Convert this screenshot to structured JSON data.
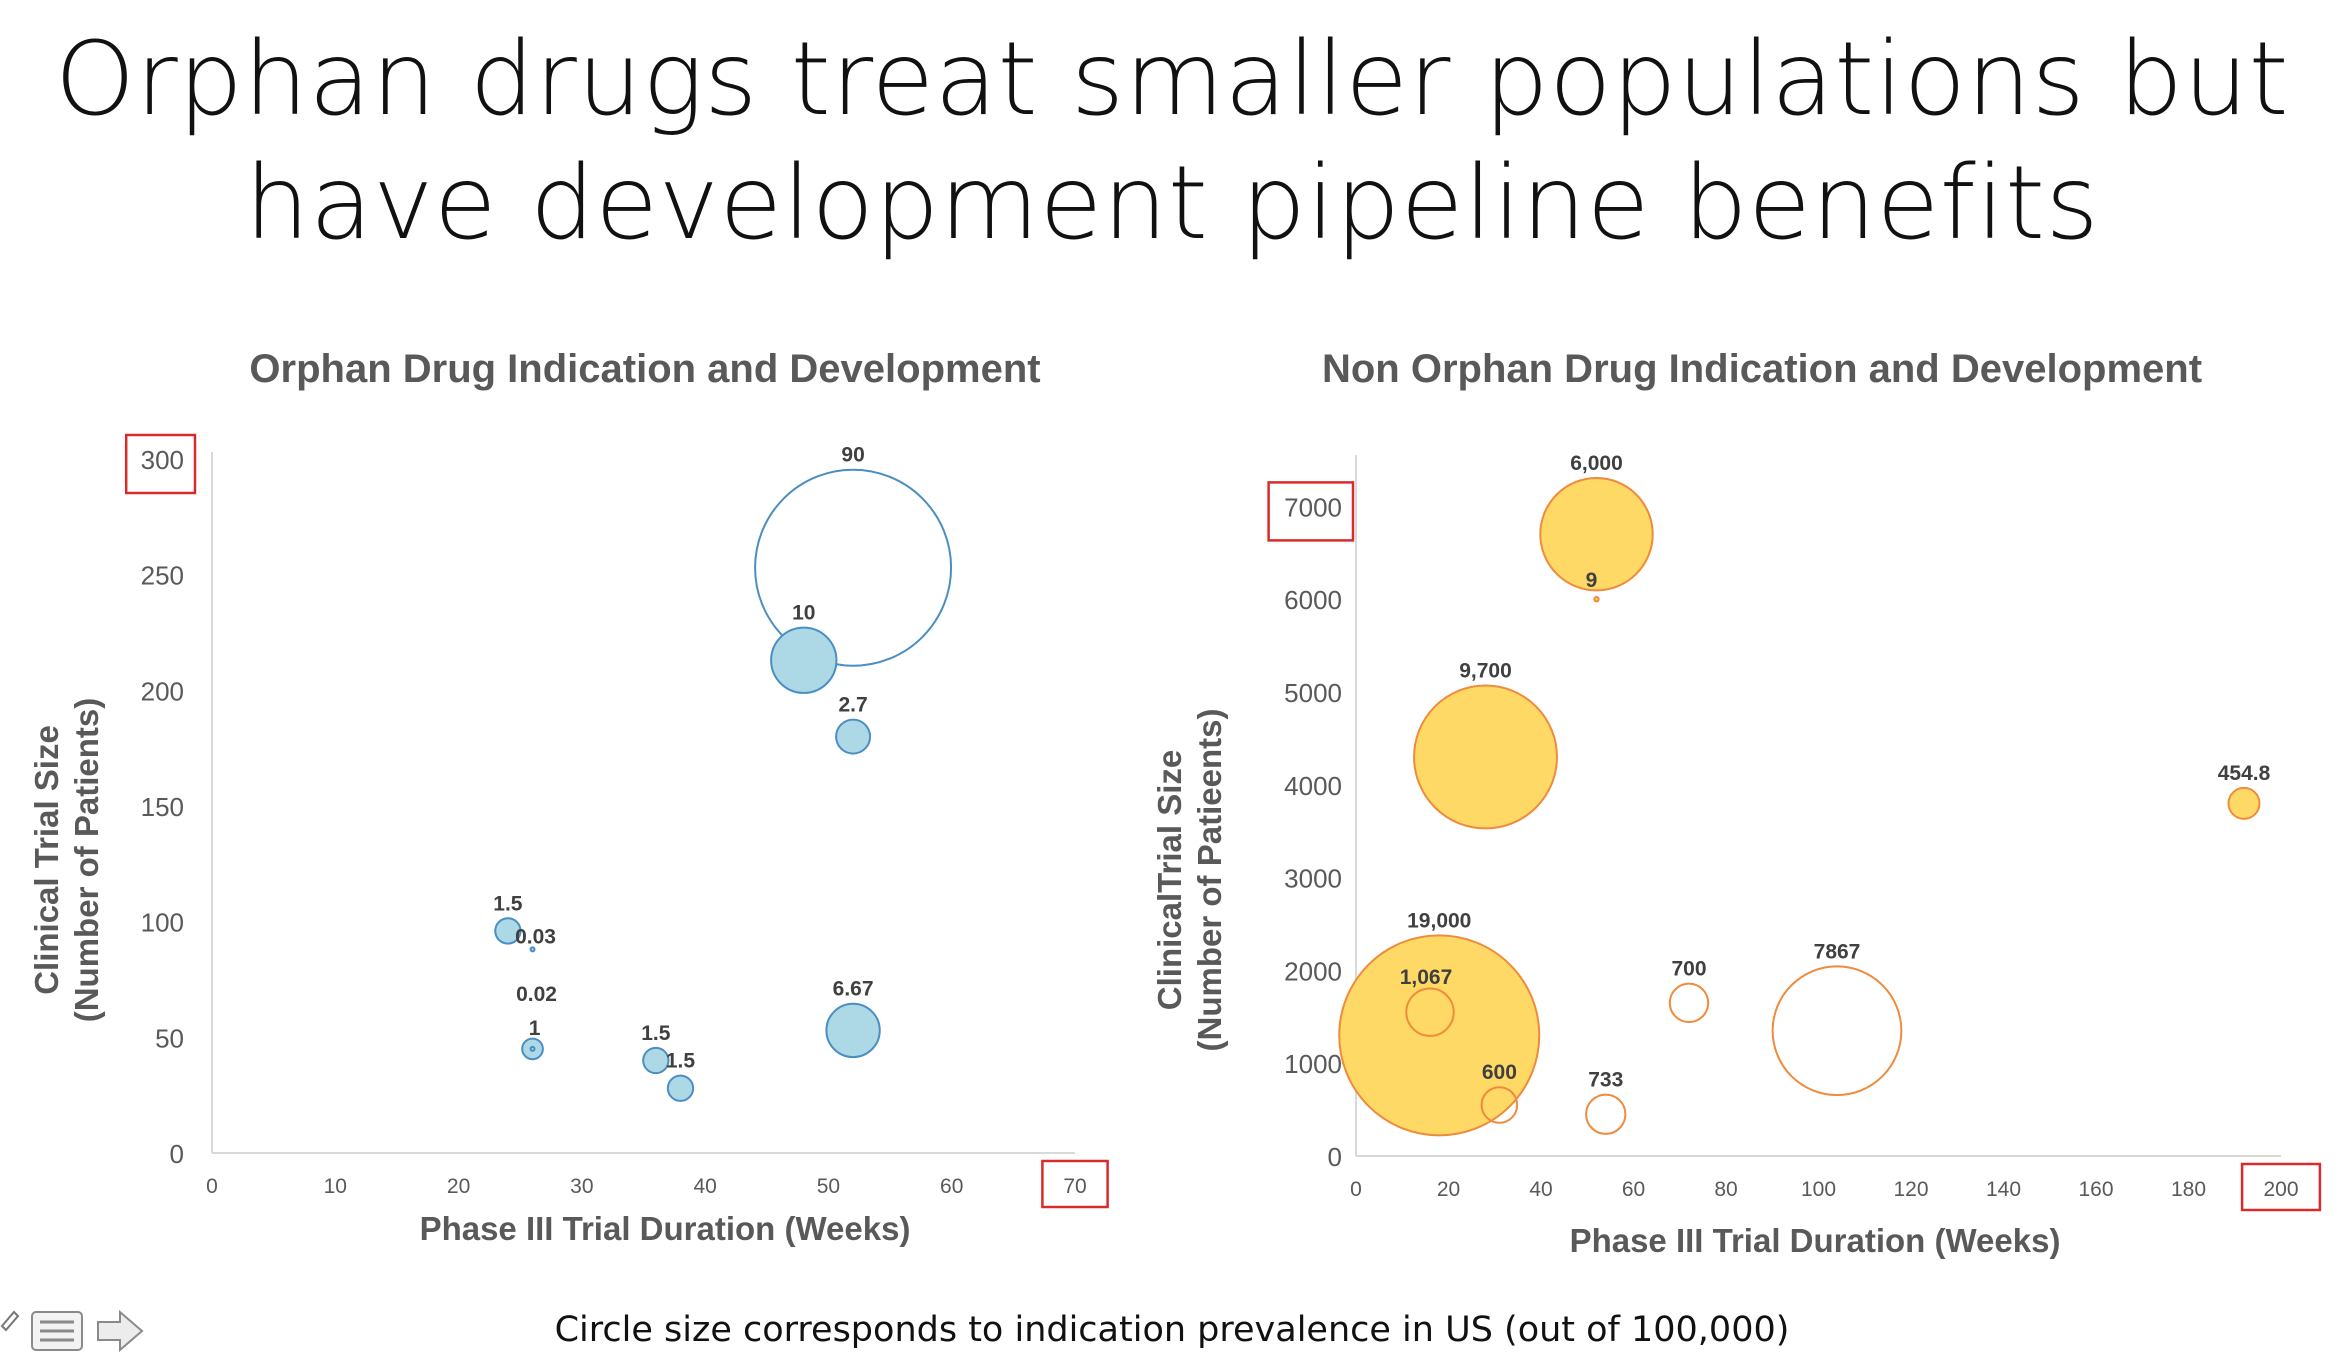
{
  "slide": {
    "title_line1": "Orphan drugs treat smaller populations but",
    "title_line2": "have development pipeline benefits",
    "footnote": "Circle size corresponds to indication prevalence in US (out of 100,000)"
  },
  "toolbar": {
    "icons": [
      "pen-icon",
      "menu-icon",
      "next-arrow-icon"
    ]
  },
  "colors": {
    "orphan_fill": "#add8e6",
    "orphan_stroke": "#4a8ec2",
    "nonorphan_fill": "#ffd966",
    "nonorphan_stroke": "#f08a3c",
    "highlight_box": "#d92b2b",
    "text_gray": "#595959",
    "axis_gray": "#d9d9d9"
  },
  "chart_data": [
    {
      "type": "bubble",
      "title": "Orphan Drug Indication and Development",
      "xlabel": "Phase III Trial Duration (Weeks)",
      "ylabel_line1": "Clinical Trial Size",
      "ylabel_line2": "(Number of Patients)",
      "xlim": [
        0,
        70
      ],
      "ylim": [
        0,
        300
      ],
      "x_ticks": [
        "0",
        "10",
        "20",
        "30",
        "40",
        "50",
        "60",
        "70"
      ],
      "y_ticks": [
        "0",
        "50",
        "100",
        "150",
        "200",
        "250",
        "300"
      ],
      "highlighted_ticks": [
        "300",
        "70"
      ],
      "size_legend": "prevalence per 100,000",
      "points": [
        {
          "x": 52,
          "y": 253,
          "size": 90,
          "label": "90",
          "style": "outline"
        },
        {
          "x": 48,
          "y": 213,
          "size": 10,
          "label": "10",
          "style": "filled"
        },
        {
          "x": 52,
          "y": 180,
          "size": 2.7,
          "label": "2.7",
          "style": "filled"
        },
        {
          "x": 24,
          "y": 96,
          "size": 1.5,
          "label": "1.5",
          "style": "filled"
        },
        {
          "x": 26,
          "y": 88,
          "size": 0.03,
          "label": "0.03",
          "style": "filled"
        },
        {
          "x": 26,
          "y": 45,
          "size": 1,
          "label": "1",
          "style": "filled"
        },
        {
          "x": 26,
          "y": 45,
          "size": 0.02,
          "label": "0.02",
          "style": "filled"
        },
        {
          "x": 36,
          "y": 40,
          "size": 1.5,
          "label": "1.5",
          "style": "filled"
        },
        {
          "x": 38,
          "y": 28,
          "size": 1.5,
          "label": "1.5",
          "style": "filled"
        },
        {
          "x": 52,
          "y": 53,
          "size": 6.67,
          "label": "6.67",
          "style": "filled"
        }
      ]
    },
    {
      "type": "bubble",
      "title": "Non Orphan Drug Indication and Development",
      "xlabel": "Phase III Trial Duration (Weeks)",
      "ylabel_line1": "ClinicalTrial Size",
      "ylabel_line2": "(Number of Patieents)",
      "xlim": [
        0,
        200
      ],
      "ylim": [
        0,
        7500
      ],
      "x_ticks": [
        "0",
        "20",
        "40",
        "60",
        "80",
        "100",
        "120",
        "140",
        "160",
        "180",
        "200"
      ],
      "y_ticks": [
        "0",
        "1000",
        "2000",
        "3000",
        "4000",
        "5000",
        "6000",
        "7000"
      ],
      "highlighted_ticks": [
        "7000",
        "200"
      ],
      "size_legend": "prevalence per 100,000",
      "points": [
        {
          "x": 52,
          "y": 6700,
          "size": 6000,
          "label": "6,000",
          "style": "filled"
        },
        {
          "x": 52,
          "y": 6000,
          "size": 9,
          "label": "9",
          "style": "filled"
        },
        {
          "x": 28,
          "y": 4300,
          "size": 9700,
          "label": "9,700",
          "style": "filled"
        },
        {
          "x": 192,
          "y": 3800,
          "size": 454.8,
          "label": "454.8",
          "style": "filled"
        },
        {
          "x": 18,
          "y": 1300,
          "size": 19000,
          "label": "19,000",
          "style": "filled"
        },
        {
          "x": 16,
          "y": 1550,
          "size": 1067,
          "label": "1,067",
          "style": "filled"
        },
        {
          "x": 31,
          "y": 550,
          "size": 600,
          "label": "600",
          "style": "outline"
        },
        {
          "x": 54,
          "y": 450,
          "size": 733,
          "label": "733",
          "style": "outline"
        },
        {
          "x": 72,
          "y": 1650,
          "size": 700,
          "label": "700",
          "style": "outline"
        },
        {
          "x": 104,
          "y": 1350,
          "size": 7867,
          "label": "7867",
          "style": "outline"
        }
      ]
    }
  ]
}
